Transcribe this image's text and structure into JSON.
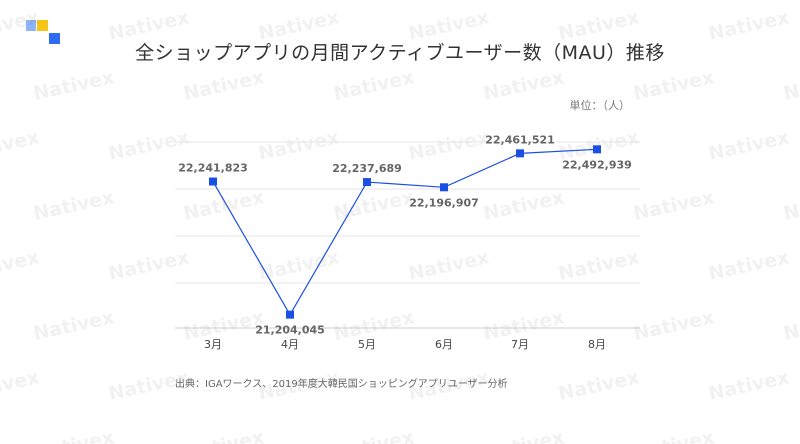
{
  "title": "全ショップアプリの月間アクティブユーザー数（MAU）推移",
  "unit_label": "単位：（人）",
  "source": "出典：IGAワークス、2019年度大韓民国ショッピングアプリユーザー分析",
  "watermark": "Nativex",
  "colors": {
    "line": "#1a4fe6",
    "marker": "#1a4fe6",
    "grid": "#e6e6e6",
    "label": "#666666",
    "logo_yellow": "#f5c518",
    "logo_blue": "#2f6bf0",
    "logo_light_blue": "#8fb3f7"
  },
  "chart_data": {
    "type": "line",
    "title": "全ショップアプリの月間アクティブユーザー数（MAU）推移",
    "ylabel": "単位：（人）",
    "xlabel": "",
    "categories": [
      "3月",
      "4月",
      "5月",
      "6月",
      "7月",
      "8月"
    ],
    "series": [
      {
        "values": [
          22241823,
          21204045,
          22237689,
          22196907,
          22461521,
          22492939
        ],
        "labels": [
          "22,241,823",
          "21,204,045",
          "22,237,689",
          "22,196,907",
          "22,461,521",
          "22,492,939"
        ]
      }
    ],
    "ylim": [
      21100000,
      22550000
    ],
    "grid": true,
    "legend": "none"
  }
}
